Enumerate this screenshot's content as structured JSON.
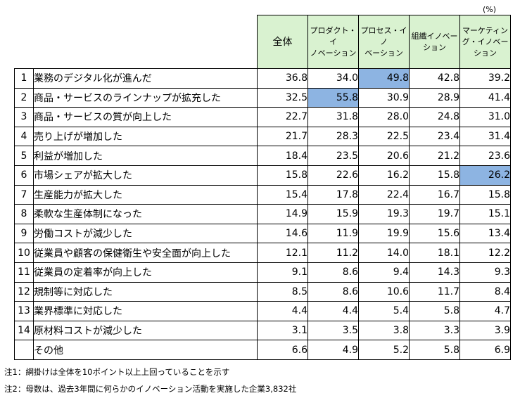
{
  "unit_label": "(%)",
  "columns": [
    "全体",
    "プロダクト・イ\nノベーション",
    "プロセス・イノ\nベーション",
    "組織イノベー\nション",
    "マーケティン\nグ・イノベー\nション"
  ],
  "rows": [
    {
      "no": "1",
      "label": "業務のデジタル化が進んだ",
      "values": [
        "36.8",
        "34.0",
        "49.8",
        "42.8",
        "39.2"
      ],
      "highlight": [
        false,
        false,
        true,
        false,
        false
      ]
    },
    {
      "no": "2",
      "label": "商品・サービスのラインナップが拡充した",
      "values": [
        "32.5",
        "55.8",
        "30.9",
        "28.9",
        "41.4"
      ],
      "highlight": [
        false,
        true,
        false,
        false,
        false
      ]
    },
    {
      "no": "3",
      "label": "商品・サービスの質が向上した",
      "values": [
        "22.7",
        "31.8",
        "28.0",
        "24.8",
        "31.0"
      ],
      "highlight": [
        false,
        false,
        false,
        false,
        false
      ]
    },
    {
      "no": "4",
      "label": "売り上げが増加した",
      "values": [
        "21.7",
        "28.3",
        "22.5",
        "23.4",
        "31.4"
      ],
      "highlight": [
        false,
        false,
        false,
        false,
        false
      ]
    },
    {
      "no": "5",
      "label": "利益が増加した",
      "values": [
        "18.4",
        "23.5",
        "20.6",
        "21.2",
        "23.6"
      ],
      "highlight": [
        false,
        false,
        false,
        false,
        false
      ]
    },
    {
      "no": "6",
      "label": "市場シェアが拡大した",
      "values": [
        "15.8",
        "22.6",
        "16.2",
        "15.8",
        "26.2"
      ],
      "highlight": [
        false,
        false,
        false,
        false,
        true
      ]
    },
    {
      "no": "7",
      "label": "生産能力が拡大した",
      "values": [
        "15.4",
        "17.8",
        "22.4",
        "16.7",
        "15.8"
      ],
      "highlight": [
        false,
        false,
        false,
        false,
        false
      ]
    },
    {
      "no": "8",
      "label": "柔軟な生産体制になった",
      "values": [
        "14.9",
        "15.9",
        "19.3",
        "19.7",
        "15.1"
      ],
      "highlight": [
        false,
        false,
        false,
        false,
        false
      ]
    },
    {
      "no": "9",
      "label": "労働コストが減少した",
      "values": [
        "14.6",
        "11.9",
        "19.9",
        "15.6",
        "13.4"
      ],
      "highlight": [
        false,
        false,
        false,
        false,
        false
      ]
    },
    {
      "no": "10",
      "label": "従業員や顧客の保健衛生や安全面が向上した",
      "values": [
        "12.1",
        "11.2",
        "14.0",
        "18.1",
        "12.2"
      ],
      "highlight": [
        false,
        false,
        false,
        false,
        false
      ]
    },
    {
      "no": "11",
      "label": "従業員の定着率が向上した",
      "values": [
        "9.1",
        "8.6",
        "9.4",
        "14.3",
        "9.3"
      ],
      "highlight": [
        false,
        false,
        false,
        false,
        false
      ]
    },
    {
      "no": "12",
      "label": "規制等に対応した",
      "values": [
        "8.5",
        "8.6",
        "10.6",
        "11.7",
        "8.4"
      ],
      "highlight": [
        false,
        false,
        false,
        false,
        false
      ]
    },
    {
      "no": "13",
      "label": "業界標準に対応した",
      "values": [
        "4.4",
        "4.4",
        "5.4",
        "5.8",
        "4.7"
      ],
      "highlight": [
        false,
        false,
        false,
        false,
        false
      ]
    },
    {
      "no": "14",
      "label": "原材料コストが減少した",
      "values": [
        "3.1",
        "3.5",
        "3.8",
        "3.3",
        "3.9"
      ],
      "highlight": [
        false,
        false,
        false,
        false,
        false
      ]
    },
    {
      "no": "",
      "label": "その他",
      "values": [
        "6.6",
        "4.9",
        "5.2",
        "5.8",
        "6.9"
      ],
      "highlight": [
        false,
        false,
        false,
        false,
        false
      ]
    }
  ],
  "notes": [
    "注1：網掛けは全体を10ポイント以上上回っていることを示す",
    "注2：母数は、過去3年間に何らかのイノベーション活動を実施した企業3,832社"
  ],
  "colors": {
    "header_bg": "#d9f2d0",
    "highlight_bg": "#8db4e2"
  }
}
